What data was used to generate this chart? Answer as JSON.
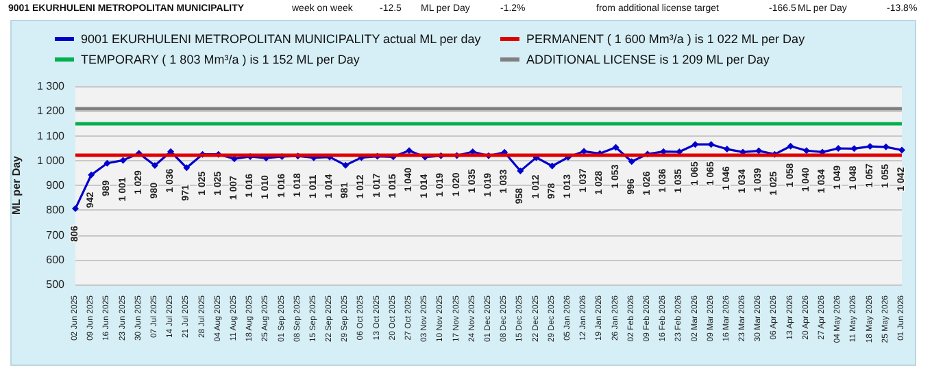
{
  "chart_data": {
    "type": "line",
    "title": "9001 EKURHULENI METROPOLITAN MUNICIPALITY",
    "annotations": [
      "week on week",
      "-12.5",
      "ML per Day",
      "-1.2%",
      "from additional license target",
      "-166.5",
      "ML per Day",
      "-13.8%"
    ],
    "ylabel": "ML per Day",
    "categories": [
      "02 Jun 2025",
      "09 Jun 2025",
      "16 Jun 2025",
      "23 Jun 2025",
      "30 Jun 2025",
      "07 Jul 2025",
      "14 Jul 2025",
      "21 Jul 2025",
      "28 Jul 2025",
      "04 Aug 2025",
      "11 Aug 2025",
      "18 Aug 2025",
      "25 Aug 2025",
      "01 Sep 2025",
      "08 Sep 2025",
      "15 Sep 2025",
      "22 Sep 2025",
      "29 Sep 2025",
      "06 Oct 2025",
      "13 Oct 2025",
      "20 Oct 2025",
      "27 Oct 2025",
      "03 Nov 2025",
      "10 Nov 2025",
      "17 Nov 2025",
      "24 Nov 2025",
      "01 Dec 2025",
      "08 Dec 2025",
      "15 Dec 2025",
      "22 Dec 2025",
      "29 Dec 2025",
      "05 Jan 2026",
      "12 Jan 2026",
      "19 Jan 2026",
      "26 Jan 2026",
      "02 Feb 2026",
      "09 Feb 2026",
      "16 Feb 2026",
      "23 Feb 2026",
      "02 Mar 2026",
      "09 Mar 2026",
      "16 Mar 2026",
      "23 Mar 2026",
      "30 Mar 2026",
      "06 Apr 2026",
      "13 Apr 2026",
      "20 Apr 2026",
      "27 Apr 2026",
      "04 May 2026",
      "11 May 2026",
      "18 May 2026",
      "25 May 2026",
      "01 Jun 2026"
    ],
    "series": [
      {
        "name": "9001 EKURHULENI METROPOLITAN MUNICIPALITY actual ML per day",
        "color": "#0000cc",
        "values": [
          806,
          942,
          989,
          1001,
          1029,
          980,
          1036,
          971,
          1025,
          1025,
          1007,
          1016,
          1010,
          1016,
          1018,
          1011,
          1014,
          981,
          1012,
          1017,
          1015,
          1040,
          1014,
          1019,
          1020,
          1035,
          1019,
          1033,
          958,
          1012,
          978,
          1013,
          1037,
          1028,
          1053,
          996,
          1026,
          1036,
          1035,
          1065,
          1065,
          1046,
          1034,
          1039,
          1025,
          1058,
          1040,
          1034,
          1049,
          1048,
          1057,
          1055,
          1042
        ],
        "value_labels": [
          "806",
          "942",
          "989",
          "1 001",
          "1 029",
          "980",
          "1 036",
          "971",
          "1 025",
          "1 025",
          "1 007",
          "1 016",
          "1 010",
          "1 016",
          "1 018",
          "1 011",
          "1 014",
          "981",
          "1 012",
          "1 017",
          "1 015",
          "1 040",
          "1 014",
          "1 019",
          "1 020",
          "1 035",
          "1 019",
          "1 033",
          "958",
          "1 012",
          "978",
          "1 013",
          "1 037",
          "1 028",
          "1 053",
          "996",
          "1 026",
          "1 036",
          "1 035",
          "1 065",
          "1 065",
          "1 046",
          "1 034",
          "1 039",
          "1 025",
          "1 058",
          "1 040",
          "1 034",
          "1 049",
          "1 048",
          "1 057",
          "1 055",
          "1 042"
        ]
      }
    ],
    "ref_lines": [
      {
        "axis": "y",
        "value": 1022,
        "label": "PERMANENT ( 1 600 Mm³/a ) is 1 022 ML per Day",
        "color": "#e00000"
      },
      {
        "axis": "y",
        "value": 1152,
        "label": "TEMPORARY ( 1 803 Mm³/a ) is 1 152 ML per Day",
        "color": "#00b050"
      },
      {
        "axis": "y",
        "value": 1209,
        "label": "ADDITIONAL LICENSE is 1 209 ML per Day",
        "color": "#808080"
      }
    ],
    "ylim": [
      500,
      1300
    ],
    "yticks": [
      {
        "value": 500,
        "label": "500"
      },
      {
        "value": 600,
        "label": "600"
      },
      {
        "value": 700,
        "label": "700"
      },
      {
        "value": 800,
        "label": "800"
      },
      {
        "value": 900,
        "label": "900"
      },
      {
        "value": 1000,
        "label": "1 000"
      },
      {
        "value": 1100,
        "label": "1 100"
      },
      {
        "value": 1200,
        "label": "1 200"
      },
      {
        "value": 1300,
        "label": "1 300"
      }
    ],
    "grid": "y",
    "legend": "top",
    "marker": "diamond",
    "line_style": "solid"
  }
}
